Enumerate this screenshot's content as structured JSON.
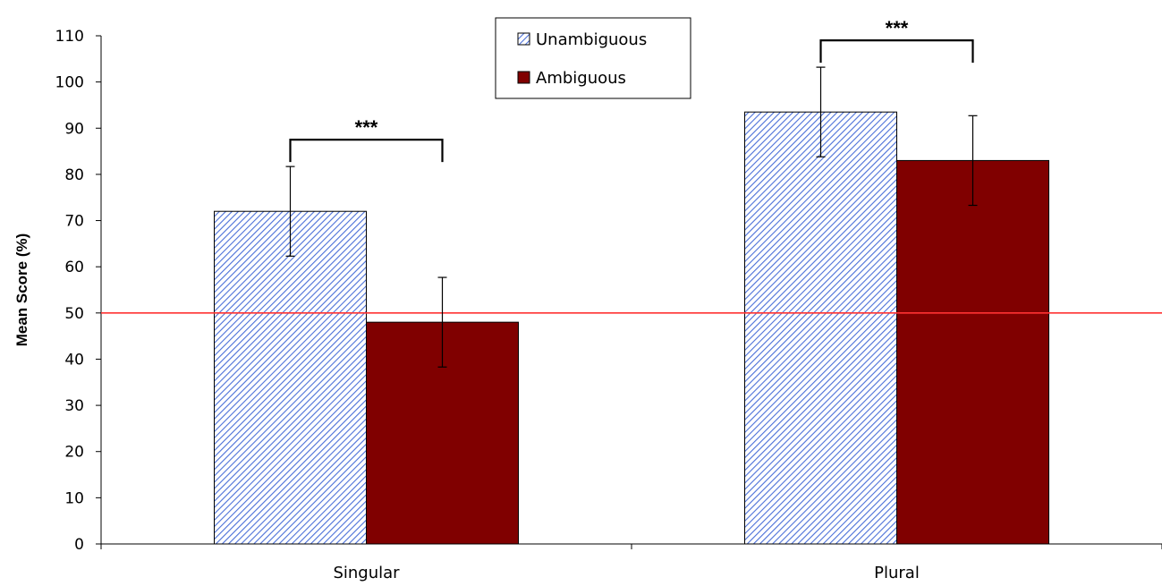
{
  "chart_data": {
    "type": "bar",
    "categories": [
      "Singular",
      "Plural"
    ],
    "series": [
      {
        "name": "Unambiguous",
        "values": [
          72,
          93.5
        ],
        "error": [
          9.7,
          9.7
        ],
        "color": "#4a6fd8",
        "pattern": "diagonal-hatch"
      },
      {
        "name": "Ambiguous",
        "values": [
          48,
          83
        ],
        "error": [
          9.7,
          9.7
        ],
        "color": "#800000",
        "pattern": "solid"
      }
    ],
    "xlabel": "",
    "ylabel": "Mean Score (%)",
    "ylim": [
      0,
      110
    ],
    "yticks": [
      0,
      10,
      20,
      30,
      40,
      50,
      60,
      70,
      80,
      90,
      100,
      110
    ],
    "reference_line": {
      "y": 50,
      "color": "#ff3333"
    },
    "significance": [
      {
        "category": "Singular",
        "label": "***"
      },
      {
        "category": "Plural",
        "label": "***"
      }
    ],
    "legend": {
      "position": "top-center",
      "entries": [
        "Unambiguous",
        "Ambiguous"
      ]
    },
    "grid": false
  }
}
